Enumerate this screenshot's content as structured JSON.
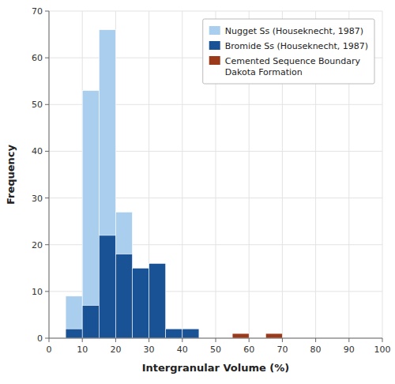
{
  "chart_data": {
    "type": "histogram",
    "bins": [
      0,
      5,
      10,
      15,
      20,
      25,
      30,
      35,
      40,
      45,
      50,
      55,
      60,
      65,
      70,
      75,
      80,
      85,
      90,
      95,
      100
    ],
    "series": [
      {
        "name": "Nugget Ss (Houseknecht, 1987)",
        "color": "#aacfee",
        "values": [
          0,
          9,
          53,
          66,
          27,
          0,
          0,
          0,
          0,
          0,
          0,
          0,
          0,
          0,
          0,
          0,
          0,
          0,
          0,
          0
        ]
      },
      {
        "name": "Bromide Ss (Houseknecht, 1987)",
        "color": "#1a5296",
        "values": [
          0,
          2,
          7,
          22,
          18,
          15,
          16,
          2,
          2,
          0,
          0,
          0,
          0,
          0,
          0,
          0,
          0,
          0,
          0,
          0
        ]
      },
      {
        "name": "Cemented Sequence Boundary\nDakota Formation",
        "color": "#9b3a1a",
        "values": [
          0,
          0,
          0,
          0,
          0,
          0,
          0,
          0,
          0,
          0,
          0,
          1,
          0,
          1,
          0,
          0,
          0,
          0,
          0,
          0
        ]
      }
    ],
    "xlabel": "Intergranular Volume (%)",
    "ylabel": "Frequency",
    "xlim": [
      0,
      100
    ],
    "ylim": [
      0,
      70
    ],
    "xticks": [
      0,
      10,
      20,
      30,
      40,
      50,
      60,
      70,
      80,
      90,
      100
    ],
    "yticks": [
      0,
      10,
      20,
      30,
      40,
      50,
      60,
      70
    ],
    "grid": true,
    "legend": "upper right"
  }
}
